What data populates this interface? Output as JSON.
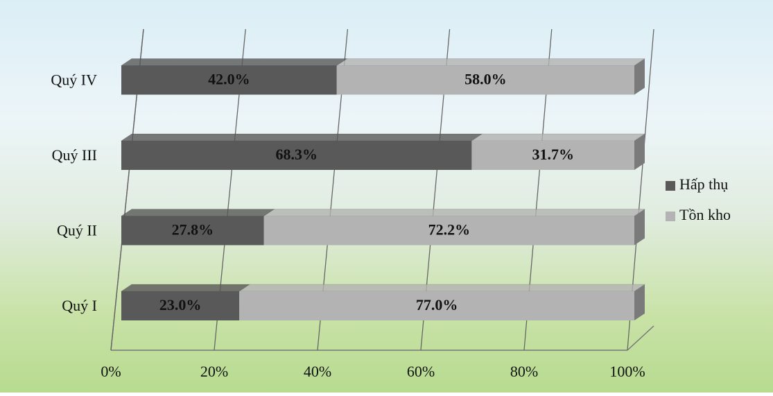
{
  "chart_data": {
    "type": "bar",
    "categories": [
      "Quý I",
      "Quý II",
      "Quý III",
      "Quý IV"
    ],
    "series": [
      {
        "name": "Hấp thụ",
        "color": "#595959",
        "values": [
          23.0,
          27.8,
          68.3,
          42.0
        ],
        "value_labels": [
          "23.0%",
          "27.8%",
          "68.3%",
          "42.0%"
        ]
      },
      {
        "name": "Tồn kho",
        "color": "#b3b3b3",
        "values": [
          77.0,
          72.2,
          31.7,
          58.0
        ],
        "value_labels": [
          "77.0%",
          "72.2%",
          "31.7%",
          "58.0%"
        ]
      }
    ],
    "xlim": [
      0,
      100
    ],
    "xticks": [
      {
        "value": 0,
        "label": "0%"
      },
      {
        "value": 20,
        "label": "20%"
      },
      {
        "value": 40,
        "label": "40%"
      },
      {
        "value": 60,
        "label": "60%"
      },
      {
        "value": 80,
        "label": "80%"
      },
      {
        "value": 100,
        "label": "100%"
      }
    ],
    "grid": true,
    "legend": "right"
  }
}
